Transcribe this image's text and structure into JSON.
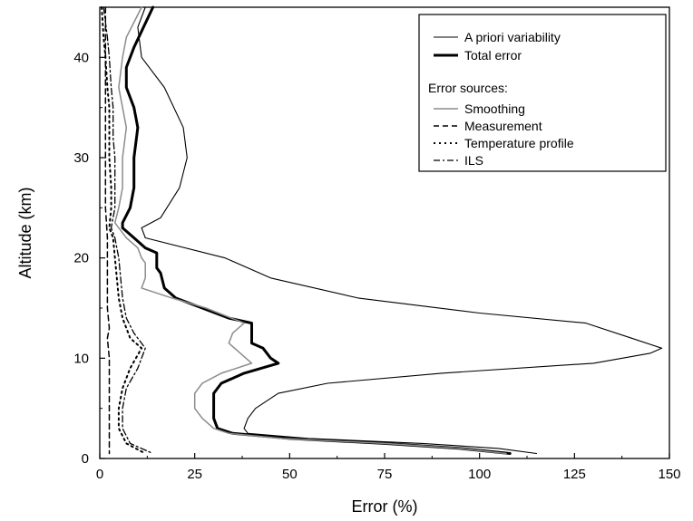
{
  "chart_data": {
    "type": "line",
    "title": "",
    "xlabel": "Error (%)",
    "ylabel": "Altitude (km)",
    "xlim": [
      0,
      150
    ],
    "ylim": [
      0,
      45
    ],
    "xticks": [
      0,
      25,
      50,
      75,
      100,
      125,
      150
    ],
    "yticks": [
      0,
      10,
      20,
      30,
      40
    ],
    "grid": false,
    "legend_position": "top-right",
    "legend_header": "Error sources:",
    "series": [
      {
        "name": "A priori variability",
        "style": "thin-solid",
        "color": "#000000",
        "points": [
          [
            12,
            45
          ],
          [
            10,
            43
          ],
          [
            11,
            40
          ],
          [
            17,
            37
          ],
          [
            22,
            33
          ],
          [
            23,
            30
          ],
          [
            21,
            27
          ],
          [
            16,
            24
          ],
          [
            11,
            23
          ],
          [
            12,
            22
          ],
          [
            33,
            20
          ],
          [
            45,
            18
          ],
          [
            68,
            16
          ],
          [
            100,
            14.5
          ],
          [
            128,
            13.5
          ],
          [
            140,
            12
          ],
          [
            148,
            11
          ],
          [
            145,
            10.5
          ],
          [
            130,
            9.5
          ],
          [
            90,
            8.5
          ],
          [
            60,
            7.5
          ],
          [
            47,
            6.5
          ],
          [
            41,
            5
          ],
          [
            39,
            4
          ],
          [
            38,
            3
          ],
          [
            39,
            2.5
          ],
          [
            55,
            2
          ],
          [
            85,
            1.5
          ],
          [
            105,
            1
          ],
          [
            115,
            0.5
          ]
        ]
      },
      {
        "name": "Total error",
        "style": "thick-solid",
        "color": "#000000",
        "points": [
          [
            14,
            45
          ],
          [
            9,
            41
          ],
          [
            7,
            39
          ],
          [
            7,
            37
          ],
          [
            9,
            35
          ],
          [
            10,
            33
          ],
          [
            9,
            30
          ],
          [
            9,
            27
          ],
          [
            8,
            25
          ],
          [
            6,
            23.5
          ],
          [
            6,
            23
          ],
          [
            9,
            22
          ],
          [
            12,
            21
          ],
          [
            15,
            20.5
          ],
          [
            15,
            19
          ],
          [
            16,
            18.5
          ],
          [
            17,
            17
          ],
          [
            20,
            16
          ],
          [
            27,
            15
          ],
          [
            34,
            14
          ],
          [
            40,
            13.5
          ],
          [
            40,
            12
          ],
          [
            40,
            11.5
          ],
          [
            43,
            11
          ],
          [
            45,
            10
          ],
          [
            47,
            9.5
          ],
          [
            38,
            8.5
          ],
          [
            32,
            7.5
          ],
          [
            30,
            6.5
          ],
          [
            30,
            5
          ],
          [
            30,
            4
          ],
          [
            31,
            3
          ],
          [
            35,
            2.5
          ],
          [
            50,
            2
          ],
          [
            75,
            1.5
          ],
          [
            95,
            1
          ],
          [
            108,
            0.5
          ]
        ]
      },
      {
        "name": "Smoothing",
        "style": "thin-solid-grey",
        "color": "#8c8c8c",
        "points": [
          [
            11,
            45
          ],
          [
            7,
            42
          ],
          [
            6,
            40
          ],
          [
            5,
            37
          ],
          [
            6,
            35
          ],
          [
            7,
            33
          ],
          [
            6,
            30
          ],
          [
            6,
            27
          ],
          [
            5,
            25
          ],
          [
            4,
            23.5
          ],
          [
            7,
            22
          ],
          [
            10,
            21
          ],
          [
            11,
            20
          ],
          [
            12,
            19.5
          ],
          [
            12,
            18
          ],
          [
            11,
            17
          ],
          [
            19,
            16
          ],
          [
            28,
            15
          ],
          [
            38,
            13.5
          ],
          [
            35,
            12.5
          ],
          [
            34,
            11.5
          ],
          [
            37,
            10.5
          ],
          [
            40,
            9.5
          ],
          [
            32,
            8.5
          ],
          [
            27,
            7.5
          ],
          [
            25,
            6.5
          ],
          [
            25,
            5
          ],
          [
            27,
            4
          ],
          [
            30,
            3
          ],
          [
            34,
            2.5
          ],
          [
            48,
            2
          ],
          [
            75,
            1.5
          ],
          [
            95,
            1
          ],
          [
            107,
            0.5
          ]
        ]
      },
      {
        "name": "Measurement",
        "style": "dashed",
        "color": "#000000",
        "points": [
          [
            1.5,
            45
          ],
          [
            1.5,
            40
          ],
          [
            1.5,
            35
          ],
          [
            1.5,
            30
          ],
          [
            1.5,
            25
          ],
          [
            2,
            22
          ],
          [
            2,
            20
          ],
          [
            2,
            17
          ],
          [
            2,
            15
          ],
          [
            2.5,
            13
          ],
          [
            2,
            12
          ],
          [
            2.5,
            10
          ],
          [
            2.5,
            8
          ],
          [
            2.5,
            6
          ],
          [
            2.5,
            4
          ],
          [
            2.5,
            2
          ],
          [
            2.5,
            0.5
          ]
        ]
      },
      {
        "name": "Temperature profile",
        "style": "dotted",
        "color": "#000000",
        "points": [
          [
            0.5,
            45
          ],
          [
            1,
            42
          ],
          [
            1.5,
            40
          ],
          [
            2,
            37
          ],
          [
            2.5,
            35
          ],
          [
            2.5,
            32
          ],
          [
            2.5,
            30
          ],
          [
            3,
            27
          ],
          [
            3,
            25
          ],
          [
            2.5,
            23
          ],
          [
            3.5,
            22
          ],
          [
            4,
            20
          ],
          [
            4.5,
            18
          ],
          [
            5,
            16
          ],
          [
            6,
            14
          ],
          [
            8,
            12
          ],
          [
            11,
            11
          ],
          [
            8,
            9
          ],
          [
            6,
            7
          ],
          [
            5,
            5
          ],
          [
            5,
            3
          ],
          [
            7,
            1.5
          ],
          [
            12,
            0.5
          ]
        ]
      },
      {
        "name": "ILS",
        "style": "dash-dot",
        "color": "#000000",
        "points": [
          [
            1,
            45
          ],
          [
            2,
            42
          ],
          [
            2.5,
            40
          ],
          [
            3,
            37
          ],
          [
            3.5,
            35
          ],
          [
            3.5,
            32
          ],
          [
            4,
            30
          ],
          [
            4,
            27
          ],
          [
            4,
            25
          ],
          [
            3,
            23
          ],
          [
            4,
            22
          ],
          [
            5,
            20
          ],
          [
            5.5,
            18
          ],
          [
            6,
            16
          ],
          [
            7,
            14
          ],
          [
            9,
            12.5
          ],
          [
            12,
            11
          ],
          [
            10,
            9
          ],
          [
            7,
            7
          ],
          [
            6,
            5
          ],
          [
            6,
            3
          ],
          [
            8,
            1.5
          ],
          [
            14,
            0.5
          ]
        ]
      }
    ]
  }
}
